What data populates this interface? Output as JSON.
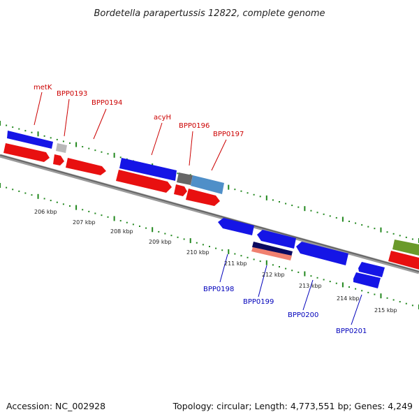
{
  "title": "Bordetella parapertussis 12822, complete genome",
  "footer": {
    "accession": "Accession: NC_002928",
    "stats": "Topology: circular; Length: 4,773,551 bp; Genes: 4,249"
  },
  "colors": {
    "forward_gene": "#1515e6",
    "reverse_gene": "#e81010",
    "label_forward": "#cc0000",
    "label_reverse": "#0000bb",
    "tick": "#22881e",
    "backbone": "#7a7a7a",
    "grey_gene": "#666666",
    "steel_gene": "#4f8fc8",
    "olive_gene": "#6a9a2a",
    "salmon_gene": "#f08070",
    "navy_gene": "#0a0a60"
  },
  "scale_ticks": [
    "206 kbp",
    "207 kbp",
    "208 kbp",
    "209 kbp",
    "210 kbp",
    "211 kbp",
    "212 kbp",
    "213 kbp",
    "214 kbp",
    "215 kbp"
  ],
  "top_labels": [
    "metK",
    "BPP0193",
    "BPP0194",
    "acyH",
    "BPP0196",
    "BPP0197"
  ],
  "bottom_labels": [
    "BPP0198",
    "BPP0199",
    "BPP0200",
    "BPP0201"
  ]
}
